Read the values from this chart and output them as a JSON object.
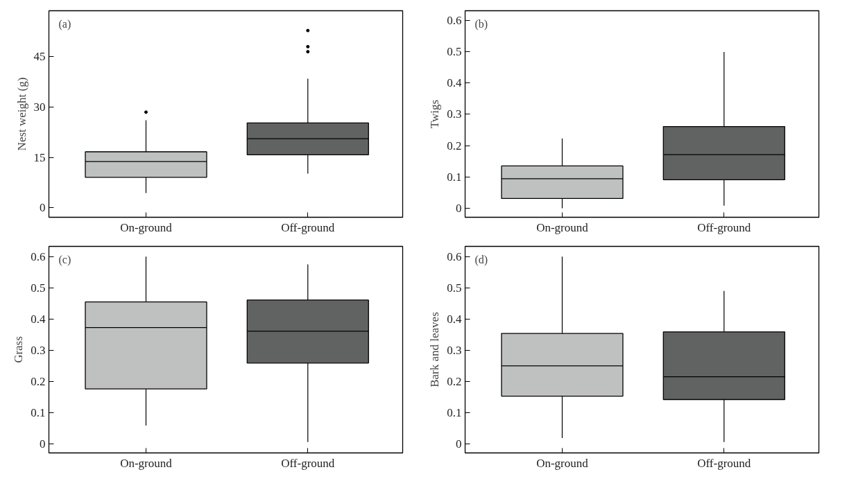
{
  "chart_data": [
    {
      "type": "box",
      "ylabel": "Nest weight (g)",
      "annotations": [
        "(a)"
      ],
      "categories": [
        "On-ground",
        "Off-ground"
      ],
      "colors": [
        "#bfc1c0",
        "#616362"
      ],
      "ylim": [
        -2.8,
        58.7
      ],
      "yticks": [
        0,
        15,
        30,
        45
      ],
      "grid": false,
      "boxes": [
        {
          "low": 4.4,
          "q1": 9.1,
          "median": 13.8,
          "q3": 16.7,
          "high": 26.1,
          "outliers": [
            28.5
          ]
        },
        {
          "low": 10.2,
          "q1": 15.8,
          "median": 20.6,
          "q3": 25.3,
          "high": 38.5,
          "outliers": [
            46.5,
            48.0,
            52.8
          ]
        }
      ]
    },
    {
      "type": "box",
      "ylabel": "Twigs",
      "annotations": [
        "(b)"
      ],
      "categories": [
        "On-ground",
        "Off-ground"
      ],
      "colors": [
        "#bfc1c0",
        "#616362"
      ],
      "ylim": [
        -0.029,
        0.631
      ],
      "yticks": [
        0,
        0.1,
        0.2,
        0.3,
        0.4,
        0.5,
        0.6
      ],
      "grid": false,
      "boxes": [
        {
          "low": 0.0,
          "q1": 0.031,
          "median": 0.094,
          "q3": 0.135,
          "high": 0.223
        },
        {
          "low": 0.008,
          "q1": 0.091,
          "median": 0.171,
          "q3": 0.261,
          "high": 0.499
        }
      ]
    },
    {
      "type": "box",
      "ylabel": "Grass",
      "annotations": [
        "(c)"
      ],
      "categories": [
        "On-ground",
        "Off-ground"
      ],
      "colors": [
        "#bfc1c0",
        "#616362"
      ],
      "ylim": [
        -0.029,
        0.633
      ],
      "yticks": [
        0,
        0.1,
        0.2,
        0.3,
        0.4,
        0.5,
        0.6
      ],
      "grid": false,
      "boxes": [
        {
          "low": 0.059,
          "q1": 0.176,
          "median": 0.373,
          "q3": 0.455,
          "high": 0.6
        },
        {
          "low": 0.006,
          "q1": 0.259,
          "median": 0.361,
          "q3": 0.461,
          "high": 0.575
        }
      ]
    },
    {
      "type": "box",
      "ylabel": "Bark and leaves",
      "annotations": [
        "(d)"
      ],
      "categories": [
        "On-ground",
        "Off-ground"
      ],
      "colors": [
        "#bfc1c0",
        "#616362"
      ],
      "ylim": [
        -0.029,
        0.633
      ],
      "yticks": [
        0,
        0.1,
        0.2,
        0.3,
        0.4,
        0.5,
        0.6
      ],
      "grid": false,
      "boxes": [
        {
          "low": 0.019,
          "q1": 0.153,
          "median": 0.25,
          "q3": 0.354,
          "high": 0.6
        },
        {
          "low": 0.006,
          "q1": 0.142,
          "median": 0.215,
          "q3": 0.359,
          "high": 0.49
        }
      ]
    }
  ]
}
